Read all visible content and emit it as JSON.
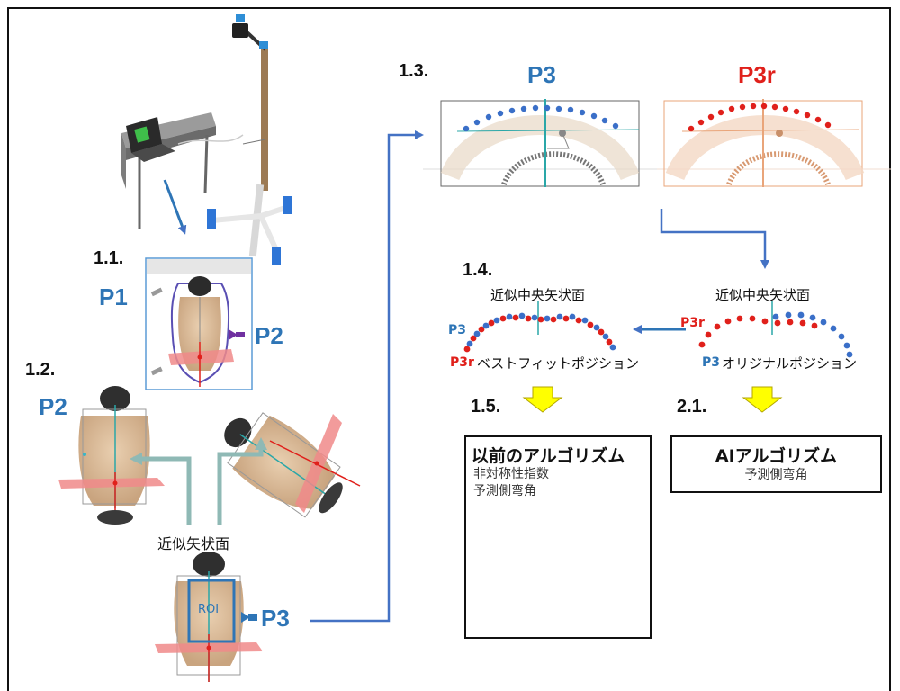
{
  "steps": {
    "s1_1": "1.1.",
    "s1_2": "1.2.",
    "s1_3": "1.3.",
    "s1_4": "1.4.",
    "s1_5": "1.5.",
    "s2_1": "2.1."
  },
  "labels": {
    "p1": "P1",
    "p2_right": "P2",
    "p2_left": "P2",
    "p3_bottom": "P3",
    "p3_top": "P3",
    "p3r_top": "P3r",
    "approx_sagittal": "近似矢状面",
    "roi": "ROI"
  },
  "panel_1_4": {
    "left_title": "近似中央矢状面",
    "right_title": "近似中央矢状面",
    "left_p3": "P3",
    "left_p3r": "P3r",
    "left_caption": "ベストフィットポジション",
    "right_p3r": "P3r",
    "right_p3": "P3",
    "right_caption": "オリジナルポジション"
  },
  "box_previous": {
    "title": "以前のアルゴリズム",
    "line1": "非対称性指数",
    "line2": "予測側弯角"
  },
  "box_ai": {
    "title": "AIアルゴリズム",
    "line1": "予測側弯角"
  },
  "colors": {
    "blue": "#2e75b6",
    "red": "#e0201b",
    "arrow_blue": "#4472c4",
    "teal_arrow": "#8fb9b5",
    "yellow_arrow": "#ffff00"
  }
}
